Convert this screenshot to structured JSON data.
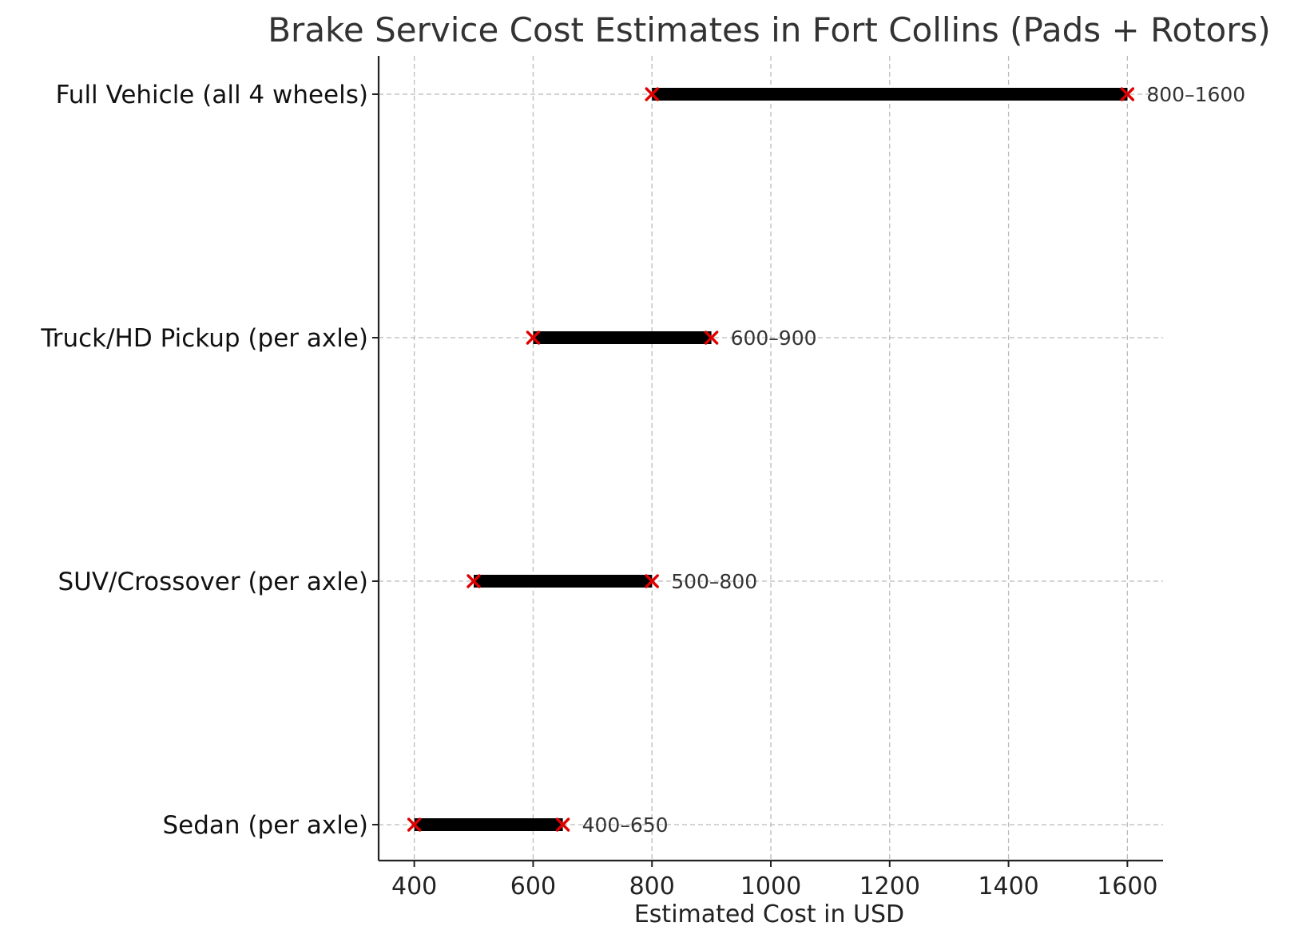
{
  "chart_data": {
    "type": "range-bar",
    "title": "Brake Service Cost Estimates in Fort Collins (Pads + Rotors)",
    "xlabel": "Estimated Cost in USD",
    "ylabel": "",
    "xlim": [
      340,
      1660
    ],
    "xticks": [
      400,
      600,
      800,
      1000,
      1200,
      1400,
      1600
    ],
    "xtick_labels": [
      "400",
      "600",
      "800",
      "1000",
      "1200",
      "1400",
      "1600"
    ],
    "grid": true,
    "categories": [
      "Sedan (per axle)",
      "SUV/Crossover (per axle)",
      "Truck/HD Pickup (per axle)",
      "Full Vehicle (all 4 wheels)"
    ],
    "ranges": [
      {
        "category": "Sedan (per axle)",
        "low": 400,
        "high": 650,
        "label": "400–650"
      },
      {
        "category": "SUV/Crossover (per axle)",
        "low": 500,
        "high": 800,
        "label": "500–800"
      },
      {
        "category": "Truck/HD Pickup (per axle)",
        "low": 600,
        "high": 900,
        "label": "600–900"
      },
      {
        "category": "Full Vehicle (all 4 wheels)",
        "low": 800,
        "high": 1600,
        "label": "800–1600"
      }
    ],
    "colors": {
      "bar": "#000000",
      "marker": "#e00000",
      "grid": "#bbbbbb",
      "axis": "#222222"
    }
  }
}
